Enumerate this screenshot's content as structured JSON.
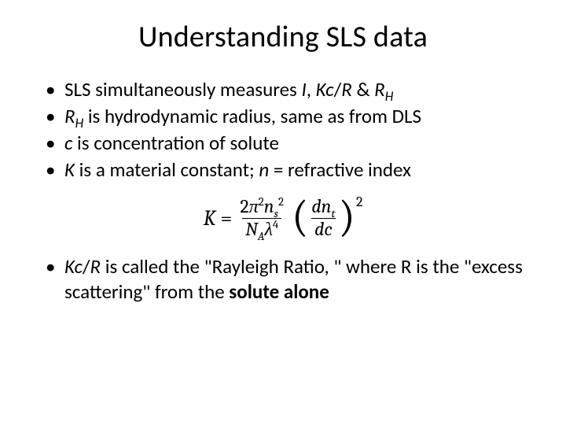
{
  "title": "Understanding SLS data",
  "bullets_top": [
    {
      "pre": "SLS simultaneously measures ",
      "i1": "I",
      "mid1": ", ",
      "i2": "Kc",
      "mid2": "/",
      "i3": "R",
      "mid3": " & ",
      "i4": "R",
      "sub4": "H",
      "post": ""
    },
    {
      "pre": "",
      "i1": "R",
      "sub1": "H",
      "mid1": " is hydrodynamic radius, same as from DLS"
    },
    {
      "pre": "",
      "i1": "c",
      "mid1": " is concentration of solute"
    },
    {
      "pre": "",
      "i1": "K",
      "mid1": " is a material constant; ",
      "i2": "n",
      "mid2": " = refractive index"
    }
  ],
  "equation": {
    "K": "K",
    "eq": "=",
    "num_coef": "2",
    "pi": "π",
    "two": "2",
    "n": "n",
    "s": "s",
    "NA_N": "N",
    "NA_A": "A",
    "lambda": "λ",
    "four": "4",
    "dn": "dn",
    "t": "t",
    "dc": "dc",
    "outer2": "2"
  },
  "bullet_bottom": {
    "i1": "Kc",
    "mid1": "/",
    "i2": "R",
    "mid2": " is called the \"Rayleigh Ratio, \" where R is the \"excess scattering\" from the ",
    "bold": "solute alone"
  },
  "style": {
    "background": "#ffffff",
    "text_color": "#000000",
    "title_fontsize": 38,
    "body_fontsize": 25,
    "equation_fontsize": 27,
    "font_family": "Calibri",
    "eq_font_family": "Cambria"
  }
}
